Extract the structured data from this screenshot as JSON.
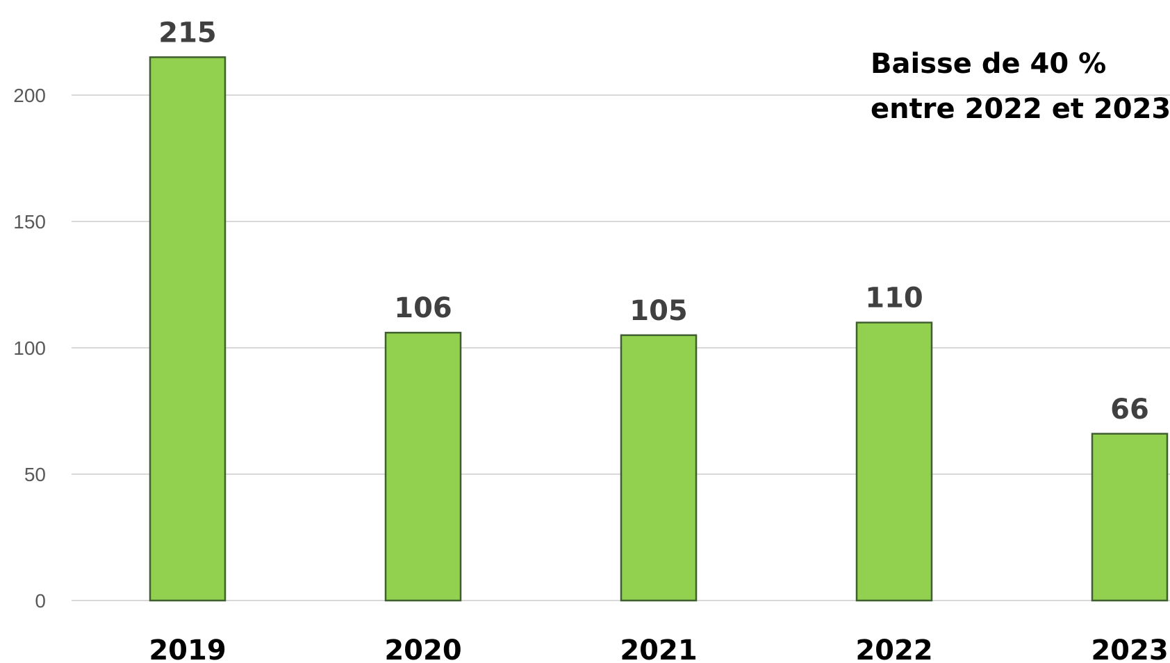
{
  "chart_data": {
    "type": "bar",
    "categories": [
      "2019",
      "2020",
      "2021",
      "2022",
      "2023"
    ],
    "values": [
      215,
      106,
      105,
      110,
      66
    ],
    "data_labels": [
      "215",
      "106",
      "105",
      "110",
      "66"
    ],
    "title": "",
    "xlabel": "",
    "ylabel": "",
    "ylim": [
      0,
      200
    ],
    "yticks": [
      "0",
      "50",
      "100",
      "150",
      "200"
    ],
    "grid": true,
    "legend": "none",
    "annotation": {
      "line1": "Baisse de 40 %",
      "line2": "entre 2022 et 2023",
      "position": "top-right"
    },
    "colors": {
      "bar_fill": "#92d050",
      "bar_stroke": "#3f5f2f",
      "grid": "#d9d9d9"
    }
  }
}
